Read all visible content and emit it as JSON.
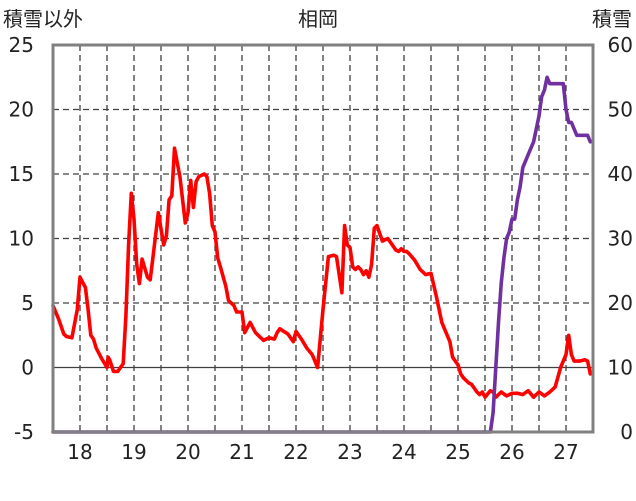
{
  "chart_data": {
    "type": "line",
    "title": "相岡",
    "ylabel_left": "積雪以外",
    "ylabel_right": "積雪",
    "ylim_left": [
      -5,
      25
    ],
    "ylim_right": [
      0,
      60
    ],
    "yticks_left": [
      "-5",
      "0",
      "5",
      "10",
      "15",
      "20",
      "25"
    ],
    "yticks_right": [
      "0",
      "10",
      "20",
      "30",
      "40",
      "50",
      "60"
    ],
    "xlim": [
      17.5,
      27.5
    ],
    "xticks": [
      "18",
      "19",
      "20",
      "21",
      "22",
      "23",
      "24",
      "25",
      "26",
      "27"
    ],
    "grid": true,
    "colors": {
      "temperature": "#ff0000",
      "snow": "#7030a0",
      "frame": "#808080",
      "grid": "#404040"
    },
    "series": [
      {
        "axis": "left",
        "x": [
          17.5,
          17.6,
          17.7,
          17.75,
          17.85,
          17.95,
          18.0,
          18.05,
          18.1,
          18.15,
          18.2,
          18.25,
          18.3,
          18.4,
          18.5,
          18.52,
          18.55,
          18.62,
          18.7,
          18.8,
          18.85,
          18.9,
          18.95,
          19.0,
          19.05,
          19.1,
          19.15,
          19.25,
          19.3,
          19.35,
          19.45,
          19.55,
          19.6,
          19.65,
          19.7,
          19.75,
          19.85,
          19.95,
          20.0,
          20.05,
          20.1,
          20.15,
          20.2,
          20.3,
          20.35,
          20.4,
          20.45,
          20.5,
          20.55,
          20.6,
          20.7,
          20.75,
          20.85,
          20.9,
          21.0,
          21.05,
          21.15,
          21.25,
          21.4,
          21.5,
          21.6,
          21.65,
          21.7,
          21.85,
          21.95,
          22.0,
          22.1,
          22.2,
          22.3,
          22.4,
          22.5,
          22.6,
          22.7,
          22.75,
          22.85,
          22.9,
          22.95,
          23.0,
          23.05,
          23.1,
          23.15,
          23.2,
          23.25,
          23.3,
          23.35,
          23.4,
          23.45,
          23.5,
          23.6,
          23.7,
          23.8,
          23.85,
          23.9,
          23.95,
          24.0,
          24.05,
          24.1,
          24.2,
          24.3,
          24.4,
          24.5,
          24.6,
          24.7,
          24.8,
          24.85,
          24.9,
          25.0,
          25.05,
          25.1,
          25.2,
          25.25,
          25.3,
          25.35,
          25.4,
          25.45,
          25.5,
          25.6,
          25.65,
          25.7,
          25.8,
          25.9,
          26.0,
          26.1,
          26.2,
          26.3,
          26.4,
          26.5,
          26.6,
          26.7,
          26.8,
          26.9,
          27.0,
          27.05,
          27.1,
          27.15,
          27.25,
          27.35,
          27.4,
          27.45
        ],
        "values": [
          4.8,
          3.8,
          2.6,
          2.4,
          2.3,
          4.5,
          7.0,
          6.6,
          6.2,
          4.5,
          2.5,
          2.2,
          1.5,
          0.7,
          0.0,
          0.8,
          0.6,
          -0.3,
          -0.3,
          0.3,
          4.0,
          9.5,
          13.5,
          11.5,
          8.0,
          6.5,
          8.4,
          7.0,
          6.8,
          8.5,
          12.0,
          9.5,
          10.2,
          13.0,
          13.3,
          17.0,
          14.8,
          11.2,
          12.0,
          14.5,
          12.4,
          14.4,
          14.8,
          15.0,
          14.8,
          13.5,
          11.0,
          10.5,
          8.5,
          7.8,
          6.3,
          5.2,
          4.8,
          4.3,
          4.3,
          2.7,
          3.5,
          2.7,
          2.1,
          2.3,
          2.2,
          2.7,
          3.0,
          2.6,
          2.0,
          2.8,
          2.2,
          1.5,
          1.0,
          0.0,
          4.5,
          8.6,
          8.7,
          8.6,
          5.8,
          11.0,
          9.5,
          9.3,
          7.8,
          7.6,
          7.8,
          7.6,
          7.2,
          7.5,
          7.0,
          8.0,
          10.8,
          11.0,
          9.8,
          10.0,
          9.4,
          9.1,
          9.0,
          9.2,
          9.0,
          9.0,
          8.8,
          8.3,
          7.6,
          7.2,
          7.3,
          5.5,
          3.5,
          2.5,
          2.0,
          0.8,
          0.2,
          -0.5,
          -0.8,
          -1.2,
          -1.3,
          -1.6,
          -1.9,
          -2.1,
          -1.9,
          -2.3,
          -1.8,
          -1.9,
          -2.3,
          -1.9,
          -2.2,
          -2.0,
          -2.0,
          -2.1,
          -1.8,
          -2.3,
          -1.9,
          -2.2,
          -1.9,
          -1.5,
          0.0,
          1.0,
          2.5,
          1.0,
          0.5,
          0.5,
          0.6,
          0.5,
          -0.5
        ]
      },
      {
        "axis": "right",
        "x": [
          17.5,
          25.6,
          25.65,
          25.7,
          25.75,
          25.8,
          25.85,
          25.9,
          25.95,
          26.0,
          26.05,
          26.1,
          26.15,
          26.2,
          26.3,
          26.4,
          26.45,
          26.5,
          26.55,
          26.6,
          26.65,
          26.7,
          26.8,
          26.9,
          26.95,
          27.0,
          27.05,
          27.1,
          27.15,
          27.2,
          27.3,
          27.4,
          27.45
        ],
        "values": [
          0,
          0,
          3,
          10,
          17,
          23,
          27,
          30,
          31,
          33,
          33,
          36,
          38,
          41,
          43,
          45,
          47,
          49,
          52,
          53,
          55,
          54,
          54,
          54,
          54,
          50,
          48,
          48,
          47,
          46,
          46,
          46,
          45
        ]
      }
    ]
  }
}
